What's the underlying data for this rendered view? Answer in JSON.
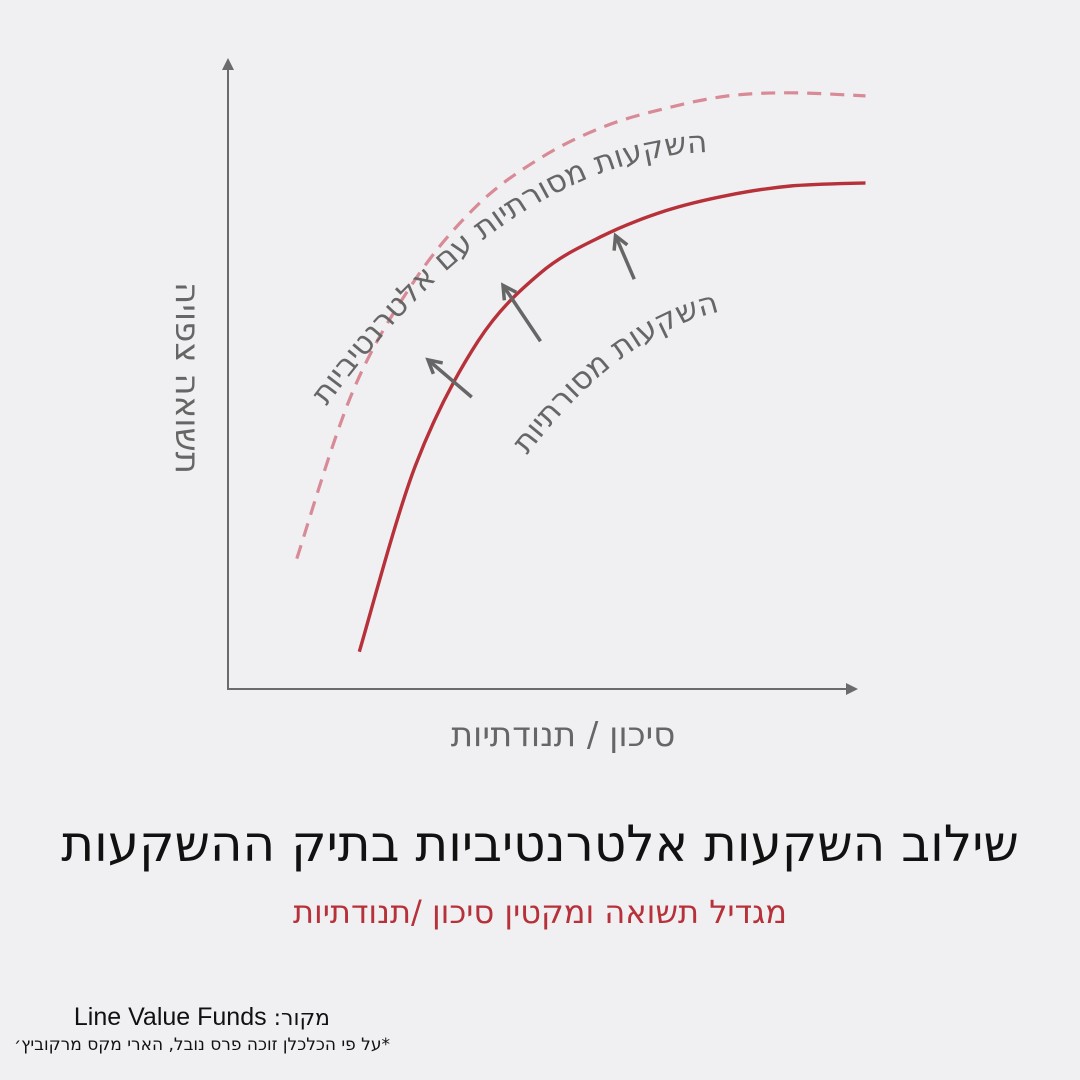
{
  "chart_data": {
    "type": "line",
    "xlabel": "סיכון / תנודתיות",
    "ylabel": "תשואה צפויה",
    "xlim": [
      0,
      10
    ],
    "ylim": [
      0,
      10
    ],
    "grid": false,
    "series": [
      {
        "name": "השקעות מסורתיות",
        "style": "solid",
        "color": "#b7313a",
        "x": [
          2.1,
          3.0,
          4.0,
          5.0,
          6.0,
          7.0,
          8.0,
          9.0,
          10.2
        ],
        "y": [
          0.6,
          3.6,
          5.6,
          6.7,
          7.3,
          7.7,
          7.95,
          8.1,
          8.15
        ]
      },
      {
        "name": "השקעות מסורתיות עם אלטרנטיביות",
        "style": "dashed",
        "color": "#d88a96",
        "x": [
          1.1,
          2.0,
          3.0,
          4.0,
          5.0,
          6.0,
          7.0,
          8.0,
          9.0,
          10.2
        ],
        "y": [
          2.1,
          4.8,
          6.6,
          7.8,
          8.55,
          9.05,
          9.35,
          9.55,
          9.6,
          9.55
        ]
      }
    ],
    "annotations": {
      "shift_arrows": [
        {
          "from": [
            3.9,
            4.7
          ],
          "to": [
            3.2,
            5.3
          ]
        },
        {
          "from": [
            5.0,
            5.6
          ],
          "to": [
            4.4,
            6.5
          ]
        },
        {
          "from": [
            6.5,
            6.6
          ],
          "to": [
            6.2,
            7.3
          ]
        }
      ]
    }
  },
  "title": "שילוב השקעות אלטרנטיביות בתיק ההשקעות",
  "subtitle": "מגדיל תשואה ומקטין סיכון /תנודתיות",
  "source": {
    "label": "מקור:",
    "name": "Line Value Funds"
  },
  "footnote": "*על פי הכלכלן זוכה פרס נובל, הארי מקס מרקוביץ׳",
  "colors": {
    "traditional": "#b7313a",
    "with_alternatives": "#d88a96",
    "axis": "#6b6b6b",
    "background": "#f0f0f2"
  }
}
